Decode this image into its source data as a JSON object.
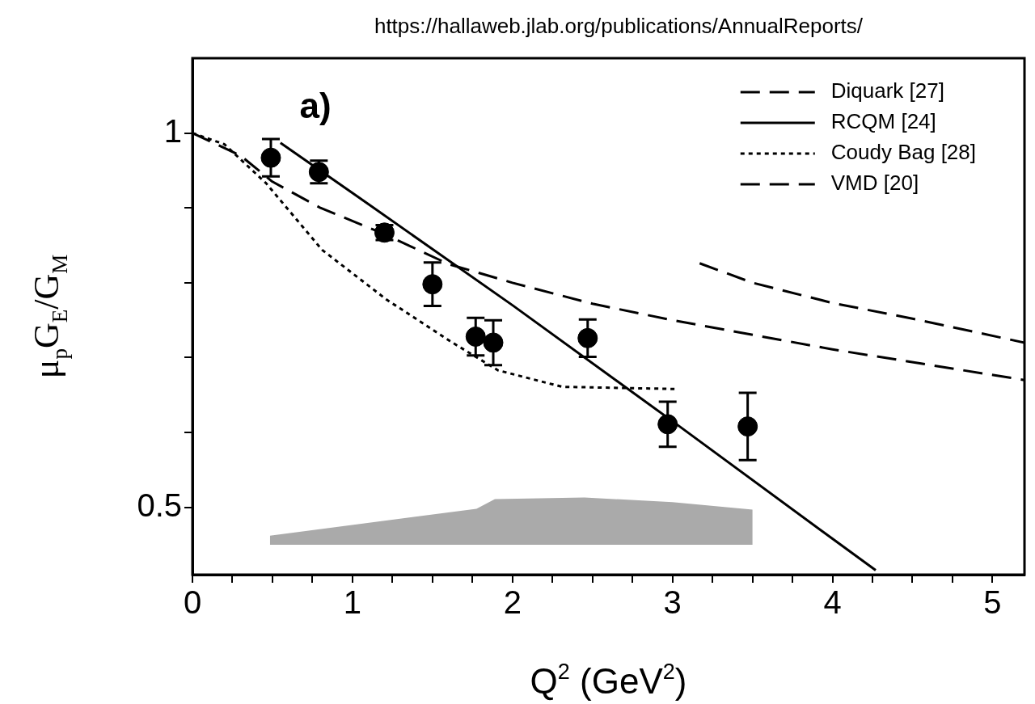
{
  "chart_data": {
    "type": "line",
    "xlabel": "Q$^{2}$ (GeV$^{2}$)",
    "ylabel": "μ$_{p}$G$_{E}$/G$_{M}$",
    "annotations": [
      "https://hallaweb.jlab.org/publications/AnnualReports/",
      "a)"
    ],
    "xlim": [
      0,
      5.2
    ],
    "ylim": [
      0.41,
      1.1
    ],
    "xticks": [
      0,
      {
        "value": 0.25,
        "label": null
      },
      {
        "value": 0.5,
        "label": null
      },
      {
        "value": 0.75,
        "label": null
      },
      1,
      {
        "value": 1.25,
        "label": null
      },
      {
        "value": 1.5,
        "label": null
      },
      {
        "value": 1.75,
        "label": null
      },
      2,
      {
        "value": 2.25,
        "label": null
      },
      {
        "value": 2.5,
        "label": null
      },
      {
        "value": 2.75,
        "label": null
      },
      3,
      {
        "value": 3.25,
        "label": null
      },
      {
        "value": 3.5,
        "label": null
      },
      {
        "value": 3.75,
        "label": null
      },
      4,
      {
        "value": 4.25,
        "label": null
      },
      {
        "value": 4.5,
        "label": null
      },
      {
        "value": 4.75,
        "label": null
      },
      5
    ],
    "yticks": [
      0.5,
      {
        "value": 0.6,
        "label": null
      },
      {
        "value": 0.7,
        "label": null
      },
      {
        "value": 0.8,
        "label": null
      },
      {
        "value": 0.9,
        "label": null
      },
      1
    ],
    "grid": false,
    "legend": "top right",
    "series": [
      {
        "name": "Diquark [27]",
        "color": "#000000",
        "line_style": "dashed",
        "x": [
          3.17,
          3.5,
          4,
          4.5,
          5.2
        ],
        "values": [
          0.826,
          0.8,
          0.773,
          0.752,
          0.72
        ]
      },
      {
        "name": "RCQM [24]",
        "color": "#000000",
        "line_style": "solid",
        "x": [
          0.55,
          1,
          2,
          3,
          4,
          4.27
        ],
        "values": [
          0.987,
          0.92,
          0.77,
          0.615,
          0.458,
          0.416
        ]
      },
      {
        "name": "Coudy Bag [28]",
        "color": "#000000",
        "line_style": "dotted",
        "x": [
          0,
          0.2,
          0.46,
          0.81,
          1.21,
          1.61,
          1.91,
          2.31,
          3.03
        ],
        "values": [
          1,
          0.985,
          0.933,
          0.844,
          0.778,
          0.722,
          0.683,
          0.661,
          0.658
        ]
      },
      {
        "name": "VMD [20]",
        "color": "#000000",
        "line_style": "dashed",
        "x": [
          0,
          0.3,
          0.5,
          0.8,
          1.2,
          1.6,
          2,
          2.5,
          3,
          4,
          5.2
        ],
        "values": [
          1,
          0.97,
          0.935,
          0.9,
          0.865,
          0.825,
          0.8,
          0.772,
          0.75,
          0.711,
          0.67
        ]
      },
      {
        "type": "scatter",
        "color": "#000000",
        "marker": "circle",
        "x": [
          0.49,
          0.79,
          1.2,
          1.5,
          1.77,
          1.88,
          2.47,
          2.97,
          3.47
        ],
        "values": [
          0.967,
          0.948,
          0.867,
          0.798,
          0.728,
          0.72,
          0.726,
          0.611,
          0.608
        ],
        "errors": [
          0.025,
          0.015,
          0.01,
          0.029,
          0.025,
          0.03,
          0.025,
          0.03,
          0.045
        ]
      },
      {
        "type": "line",
        "color": "#aaaaaa",
        "x": [
          0.485,
          1.775,
          1.89,
          2.45,
          3,
          3.5
        ],
        "values": [
          null,
          null,
          null,
          null,
          null,
          null
        ],
        "upper": [
          0.462,
          0.498,
          0.511,
          0.513,
          0.507,
          0.497
        ],
        "lower": [
          0.45,
          0.45,
          0.45,
          0.45,
          0.45,
          0.45
        ]
      }
    ]
  }
}
